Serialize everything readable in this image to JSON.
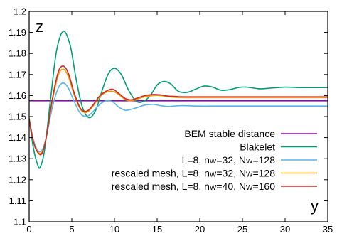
{
  "chart_data": {
    "type": "line",
    "title": "",
    "xlabel": "y",
    "ylabel": "z",
    "xlim": [
      0,
      35
    ],
    "ylim": [
      1.1,
      1.2
    ],
    "xticks": [
      "0",
      "5",
      "10",
      "15",
      "20",
      "25",
      "30",
      "35"
    ],
    "yticks": [
      "1.1",
      "1.11",
      "1.12",
      "1.13",
      "1.14",
      "1.15",
      "1.16",
      "1.17",
      "1.18",
      "1.19",
      "1.2"
    ],
    "grid": false,
    "legend_position": "lower-right",
    "series": [
      {
        "name": "BEM stable distance",
        "color": "#9400d3",
        "legend_parts": [
          [
            "BEM stable distance",
            false
          ]
        ],
        "x": [
          0,
          35
        ],
        "y": [
          1.1575,
          1.1575
        ]
      },
      {
        "name": "Blakelet",
        "color": "#009e73",
        "legend_parts": [
          [
            "Blakelet",
            false
          ]
        ],
        "x": [
          0,
          0.5,
          1,
          1.3,
          1.8,
          2.5,
          3.2,
          4,
          4.8,
          5.5,
          6.2,
          7,
          7.8,
          8.6,
          9.3,
          10,
          10.8,
          11.6,
          12.5,
          13.3,
          14.2,
          15,
          15.8,
          16.6,
          17.5,
          18.5,
          19.5,
          20.5,
          21.5,
          22.5,
          23.5,
          24.5,
          25.5,
          27,
          28.5,
          30,
          31.5,
          33,
          35
        ],
        "y": [
          1.149,
          1.135,
          1.127,
          1.126,
          1.134,
          1.158,
          1.181,
          1.1905,
          1.184,
          1.168,
          1.155,
          1.1495,
          1.153,
          1.163,
          1.1705,
          1.173,
          1.17,
          1.163,
          1.1575,
          1.157,
          1.16,
          1.165,
          1.1667,
          1.1655,
          1.162,
          1.1615,
          1.163,
          1.1645,
          1.164,
          1.1625,
          1.1628,
          1.1638,
          1.164,
          1.1632,
          1.1636,
          1.164,
          1.1638,
          1.1638,
          1.1638
        ]
      },
      {
        "name": "L=8, nw=32, Nw=128",
        "color": "#56b4e9",
        "legend_parts": [
          [
            "L=8, n",
            false
          ],
          [
            "W",
            true
          ],
          [
            "=32, N",
            false
          ],
          [
            "W",
            true
          ],
          [
            "=128",
            false
          ]
        ],
        "x": [
          0,
          0.5,
          1,
          1.5,
          2,
          2.7,
          3.4,
          4,
          4.6,
          5.3,
          6,
          6.7,
          7.4,
          8.2,
          9,
          9.8,
          10.5,
          11.3,
          12,
          12.8,
          13.6,
          14.5,
          15.4,
          16.2,
          17,
          18,
          20,
          22,
          25,
          28,
          31,
          35
        ],
        "y": [
          1.149,
          1.139,
          1.134,
          1.134,
          1.14,
          1.154,
          1.1635,
          1.166,
          1.1635,
          1.157,
          1.1515,
          1.15,
          1.152,
          1.1555,
          1.1575,
          1.157,
          1.1545,
          1.153,
          1.1535,
          1.1545,
          1.1555,
          1.1558,
          1.1552,
          1.1548,
          1.155,
          1.1552,
          1.155,
          1.155,
          1.155,
          1.155,
          1.155,
          1.155
        ]
      },
      {
        "name": "rescaled mesh, L=8, nw=32, Nw=128",
        "color": "#e69f00",
        "legend_parts": [
          [
            "rescaled mesh, L=8, n",
            false
          ],
          [
            "W",
            true
          ],
          [
            "=32, N",
            false
          ],
          [
            "W",
            true
          ],
          [
            "=128",
            false
          ]
        ],
        "x": [
          0,
          0.5,
          1,
          1.5,
          2,
          2.7,
          3.4,
          4,
          4.6,
          5.3,
          6,
          6.7,
          7.4,
          8.2,
          9,
          9.8,
          10.5,
          11.3,
          12,
          12.8,
          13.6,
          14.5,
          15.4,
          16.2,
          17,
          18,
          20,
          22,
          25,
          28,
          31,
          35
        ],
        "y": [
          1.149,
          1.138,
          1.1335,
          1.133,
          1.14,
          1.157,
          1.1695,
          1.1725,
          1.169,
          1.16,
          1.1535,
          1.152,
          1.1545,
          1.159,
          1.1615,
          1.162,
          1.1605,
          1.158,
          1.1575,
          1.1585,
          1.1595,
          1.16,
          1.16,
          1.1595,
          1.1592,
          1.159,
          1.159,
          1.159,
          1.159,
          1.159,
          1.159,
          1.159
        ]
      },
      {
        "name": "rescaled mesh, L=8, nw=40, Nw=160",
        "color": "#d62728",
        "legend_parts": [
          [
            "rescaled mesh, L=8, n",
            false
          ],
          [
            "W",
            true
          ],
          [
            "=40, N",
            false
          ],
          [
            "W",
            true
          ],
          [
            "=160",
            false
          ]
        ],
        "x": [
          0,
          0.5,
          1,
          1.5,
          2,
          2.7,
          3.4,
          4,
          4.6,
          5.3,
          6,
          6.7,
          7.4,
          8.2,
          9,
          9.8,
          10.5,
          11.3,
          12,
          12.8,
          13.6,
          14.5,
          15.4,
          16.2,
          17,
          18,
          20,
          22,
          25,
          28,
          31,
          35
        ],
        "y": [
          1.149,
          1.138,
          1.133,
          1.1325,
          1.14,
          1.158,
          1.171,
          1.174,
          1.1705,
          1.161,
          1.154,
          1.1525,
          1.155,
          1.1595,
          1.162,
          1.163,
          1.161,
          1.1585,
          1.158,
          1.159,
          1.16,
          1.1605,
          1.1603,
          1.1598,
          1.1596,
          1.1594,
          1.1594,
          1.1594,
          1.1594,
          1.1594,
          1.1594,
          1.1594
        ]
      }
    ]
  }
}
